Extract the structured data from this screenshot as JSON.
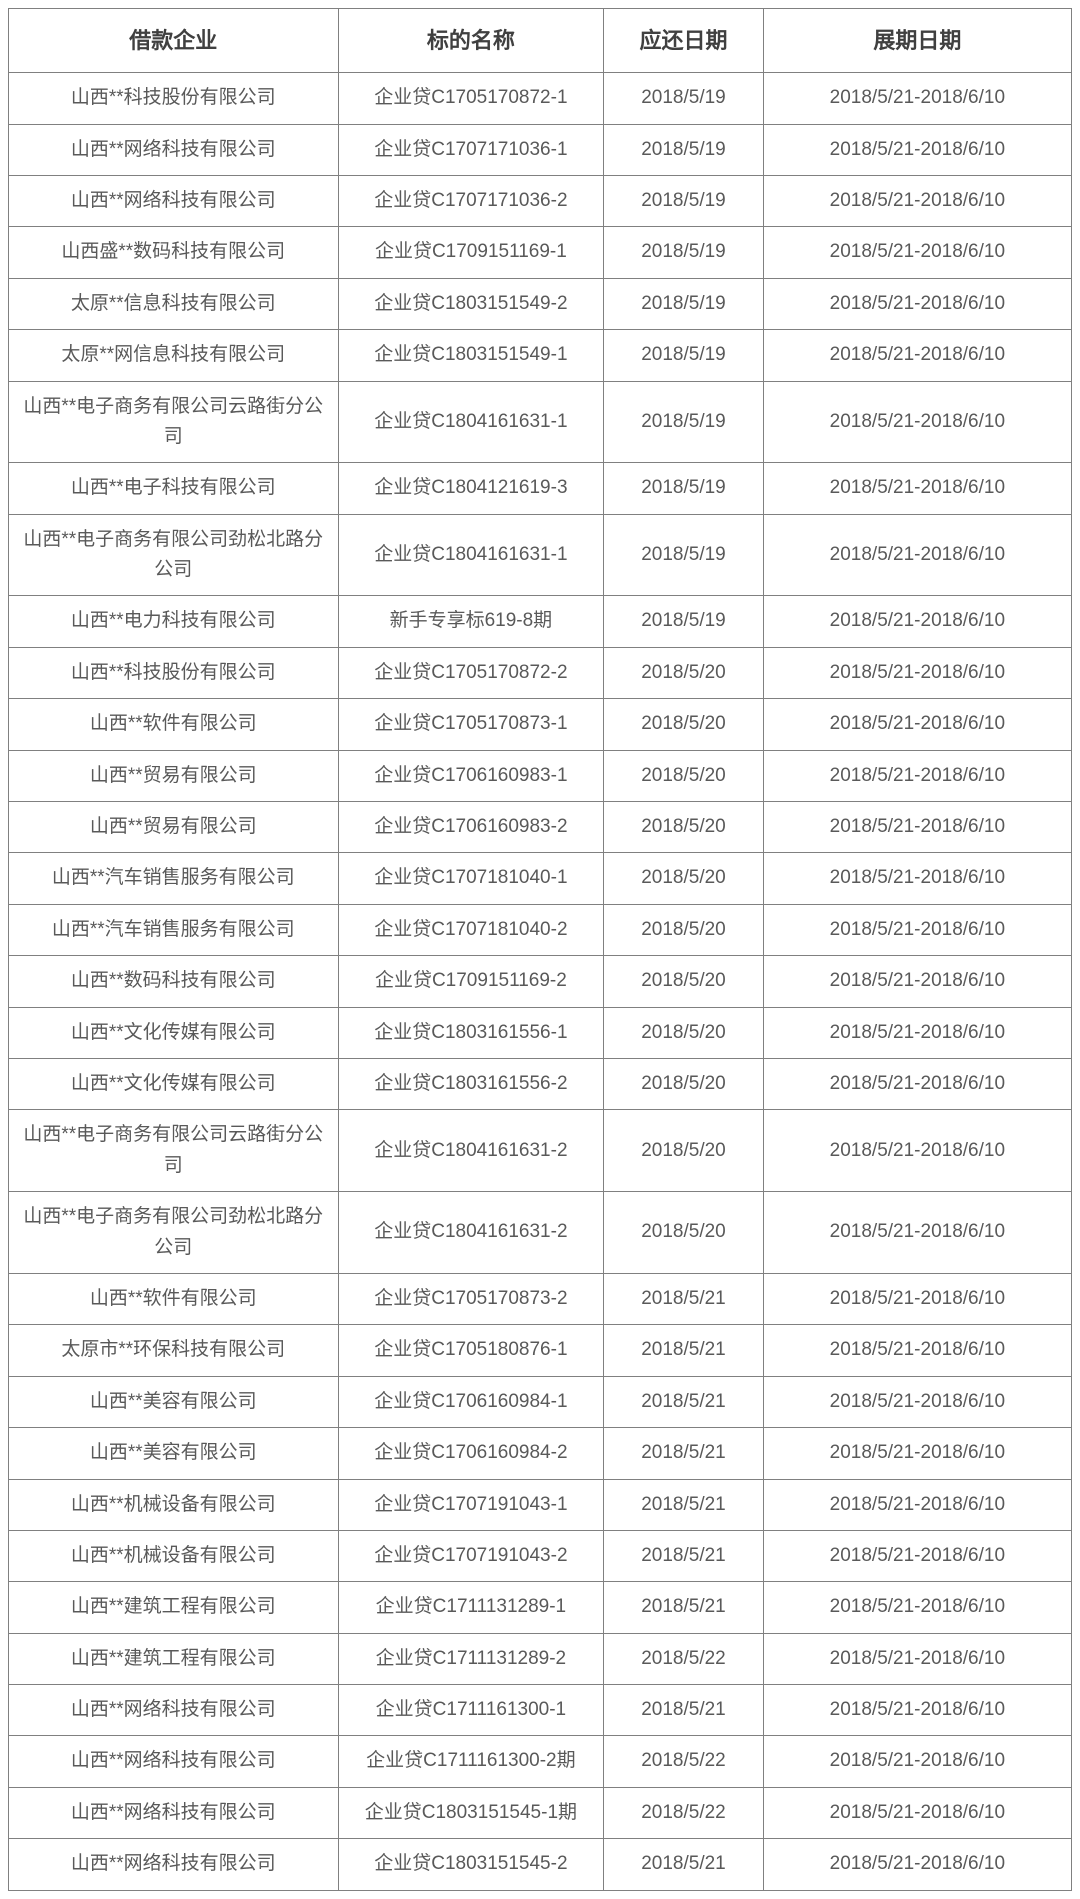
{
  "table": {
    "type": "table",
    "background_color": "#ffffff",
    "border_color": "#808080",
    "text_color": "#595959",
    "header_text_color": "#404040",
    "header_fontsize": 22,
    "cell_fontsize": 19,
    "columns": [
      {
        "key": "company",
        "label": "借款企业",
        "width": "31%"
      },
      {
        "key": "loan",
        "label": "标的名称",
        "width": "25%"
      },
      {
        "key": "due",
        "label": "应还日期",
        "width": "15%"
      },
      {
        "key": "ext",
        "label": "展期日期",
        "width": "29%"
      }
    ],
    "rows": [
      {
        "company": "山西**科技股份有限公司",
        "loan": "企业贷C1705170872-1",
        "due": "2018/5/19",
        "ext": "2018/5/21-2018/6/10"
      },
      {
        "company": "山西**网络科技有限公司",
        "loan": "企业贷C1707171036-1",
        "due": "2018/5/19",
        "ext": "2018/5/21-2018/6/10"
      },
      {
        "company": "山西**网络科技有限公司",
        "loan": "企业贷C1707171036-2",
        "due": "2018/5/19",
        "ext": "2018/5/21-2018/6/10"
      },
      {
        "company": "山西盛**数码科技有限公司",
        "loan": "企业贷C1709151169-1",
        "due": "2018/5/19",
        "ext": "2018/5/21-2018/6/10"
      },
      {
        "company": "太原**信息科技有限公司",
        "loan": "企业贷C1803151549-2",
        "due": "2018/5/19",
        "ext": "2018/5/21-2018/6/10"
      },
      {
        "company": "太原**网信息科技有限公司",
        "loan": "企业贷C1803151549-1",
        "due": "2018/5/19",
        "ext": "2018/5/21-2018/6/10"
      },
      {
        "company": "山西**电子商务有限公司云路街分公司",
        "loan": "企业贷C1804161631-1",
        "due": "2018/5/19",
        "ext": "2018/5/21-2018/6/10"
      },
      {
        "company": "山西**电子科技有限公司",
        "loan": "企业贷C1804121619-3",
        "due": "2018/5/19",
        "ext": "2018/5/21-2018/6/10"
      },
      {
        "company": "山西**电子商务有限公司劲松北路分公司",
        "loan": "企业贷C1804161631-1",
        "due": "2018/5/19",
        "ext": "2018/5/21-2018/6/10",
        "wrap": true
      },
      {
        "company": "山西**电力科技有限公司",
        "loan": "新手专享标619-8期",
        "due": "2018/5/19",
        "ext": "2018/5/21-2018/6/10"
      },
      {
        "company": "山西**科技股份有限公司",
        "loan": "企业贷C1705170872-2",
        "due": "2018/5/20",
        "ext": "2018/5/21-2018/6/10"
      },
      {
        "company": "山西**软件有限公司",
        "loan": "企业贷C1705170873-1",
        "due": "2018/5/20",
        "ext": "2018/5/21-2018/6/10"
      },
      {
        "company": "山西**贸易有限公司",
        "loan": "企业贷C1706160983-1",
        "due": "2018/5/20",
        "ext": "2018/5/21-2018/6/10"
      },
      {
        "company": "山西**贸易有限公司",
        "loan": "企业贷C1706160983-2",
        "due": "2018/5/20",
        "ext": "2018/5/21-2018/6/10"
      },
      {
        "company": "山西**汽车销售服务有限公司",
        "loan": "企业贷C1707181040-1",
        "due": "2018/5/20",
        "ext": "2018/5/21-2018/6/10"
      },
      {
        "company": "山西**汽车销售服务有限公司",
        "loan": "企业贷C1707181040-2",
        "due": "2018/5/20",
        "ext": "2018/5/21-2018/6/10"
      },
      {
        "company": "山西**数码科技有限公司",
        "loan": "企业贷C1709151169-2",
        "due": "2018/5/20",
        "ext": "2018/5/21-2018/6/10"
      },
      {
        "company": "山西**文化传媒有限公司",
        "loan": "企业贷C1803161556-1",
        "due": "2018/5/20",
        "ext": "2018/5/21-2018/6/10"
      },
      {
        "company": "山西**文化传媒有限公司",
        "loan": "企业贷C1803161556-2",
        "due": "2018/5/20",
        "ext": "2018/5/21-2018/6/10"
      },
      {
        "company": "山西**电子商务有限公司云路街分公司",
        "loan": "企业贷C1804161631-2",
        "due": "2018/5/20",
        "ext": "2018/5/21-2018/6/10"
      },
      {
        "company": "山西**电子商务有限公司劲松北路分公司",
        "loan": "企业贷C1804161631-2",
        "due": "2018/5/20",
        "ext": "2018/5/21-2018/6/10",
        "wrap": true
      },
      {
        "company": "山西**软件有限公司",
        "loan": "企业贷C1705170873-2",
        "due": "2018/5/21",
        "ext": "2018/5/21-2018/6/10"
      },
      {
        "company": "太原市**环保科技有限公司",
        "loan": "企业贷C1705180876-1",
        "due": "2018/5/21",
        "ext": "2018/5/21-2018/6/10"
      },
      {
        "company": "山西**美容有限公司",
        "loan": "企业贷C1706160984-1",
        "due": "2018/5/21",
        "ext": "2018/5/21-2018/6/10"
      },
      {
        "company": "山西**美容有限公司",
        "loan": "企业贷C1706160984-2",
        "due": "2018/5/21",
        "ext": "2018/5/21-2018/6/10"
      },
      {
        "company": "山西**机械设备有限公司",
        "loan": "企业贷C1707191043-1",
        "due": "2018/5/21",
        "ext": "2018/5/21-2018/6/10"
      },
      {
        "company": "山西**机械设备有限公司",
        "loan": "企业贷C1707191043-2",
        "due": "2018/5/21",
        "ext": "2018/5/21-2018/6/10"
      },
      {
        "company": "山西**建筑工程有限公司",
        "loan": "企业贷C1711131289-1",
        "due": "2018/5/21",
        "ext": "2018/5/21-2018/6/10"
      },
      {
        "company": "山西**建筑工程有限公司",
        "loan": "企业贷C1711131289-2",
        "due": "2018/5/22",
        "ext": "2018/5/21-2018/6/10"
      },
      {
        "company": "山西**网络科技有限公司",
        "loan": "企业贷C1711161300-1",
        "due": "2018/5/21",
        "ext": "2018/5/21-2018/6/10"
      },
      {
        "company": "山西**网络科技有限公司",
        "loan": "企业贷C1711161300-2期",
        "due": "2018/5/22",
        "ext": "2018/5/21-2018/6/10"
      },
      {
        "company": "山西**网络科技有限公司",
        "loan": "企业贷C1803151545-1期",
        "due": "2018/5/22",
        "ext": "2018/5/21-2018/6/10"
      },
      {
        "company": "山西**网络科技有限公司",
        "loan": "企业贷C1803151545-2",
        "due": "2018/5/21",
        "ext": "2018/5/21-2018/6/10"
      }
    ]
  }
}
